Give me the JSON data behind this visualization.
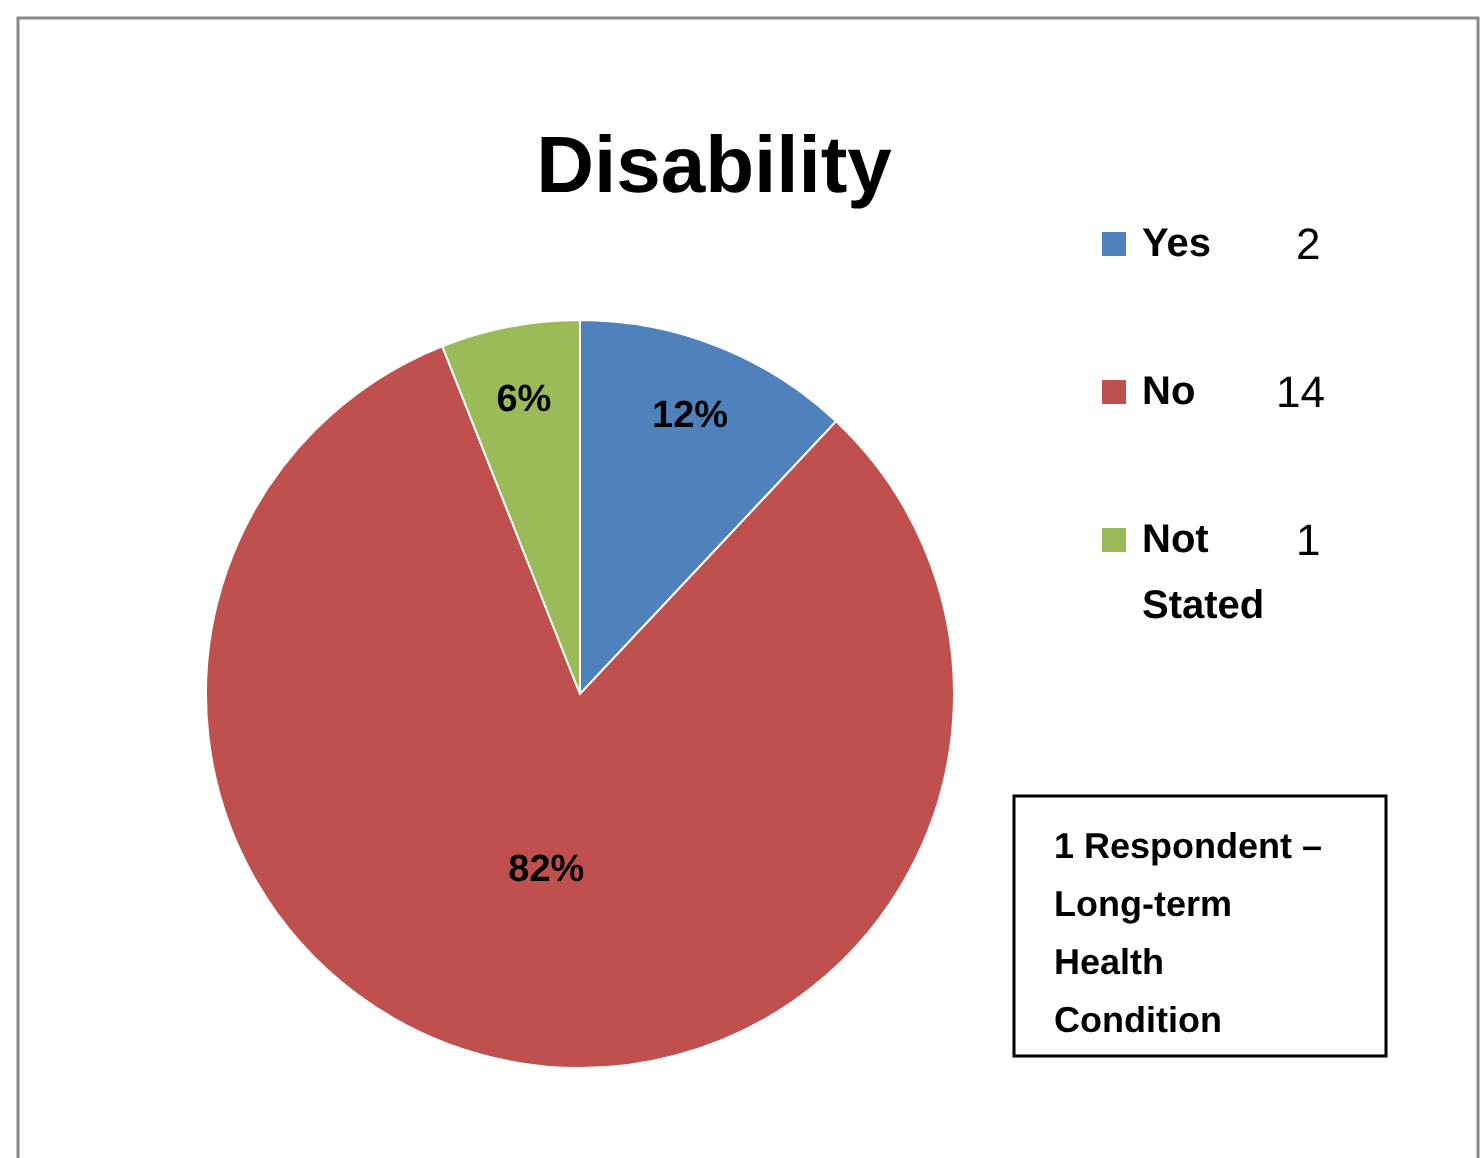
{
  "chart_data": {
    "type": "pie",
    "title": "Disability",
    "categories": [
      "Yes",
      "No",
      "Not Stated"
    ],
    "values": [
      12,
      82,
      6
    ],
    "value_labels": [
      "12%",
      "82%",
      "6%"
    ],
    "colors": [
      "#4f81bd",
      "#c0504d",
      "#9bbb59"
    ],
    "legend": "right",
    "annotations": [
      "2",
      "14",
      "1",
      "1 Respondent – Long-term Health Condition"
    ]
  }
}
